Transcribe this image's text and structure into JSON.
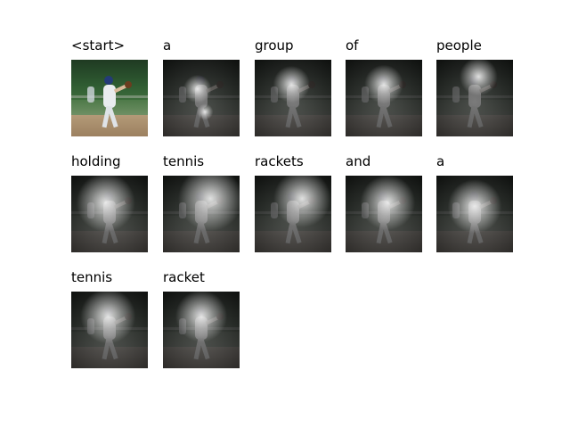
{
  "words": [
    "<start>",
    "a",
    "group",
    "of",
    "people",
    "holding",
    "tennis",
    "rackets",
    "and",
    "a",
    "tennis",
    "racket"
  ],
  "attention": [
    null,
    {
      "spots": [
        [
          0.45,
          0.38,
          0.22
        ],
        [
          0.55,
          0.68,
          0.12
        ]
      ]
    },
    {
      "spots": [
        [
          0.48,
          0.32,
          0.28
        ]
      ]
    },
    {
      "spots": [
        [
          0.5,
          0.32,
          0.3
        ]
      ]
    },
    {
      "spots": [
        [
          0.55,
          0.22,
          0.26
        ]
      ]
    },
    {
      "spots": [
        [
          0.45,
          0.35,
          0.45
        ]
      ]
    },
    {
      "spots": [
        [
          0.62,
          0.3,
          0.45
        ]
      ]
    },
    {
      "spots": [
        [
          0.62,
          0.3,
          0.4
        ]
      ]
    },
    {
      "spots": [
        [
          0.55,
          0.35,
          0.42
        ]
      ]
    },
    {
      "spots": [
        [
          0.5,
          0.4,
          0.45
        ]
      ]
    },
    {
      "spots": [
        [
          0.48,
          0.32,
          0.42
        ]
      ]
    },
    {
      "spots": [
        [
          0.5,
          0.32,
          0.4
        ]
      ]
    }
  ]
}
